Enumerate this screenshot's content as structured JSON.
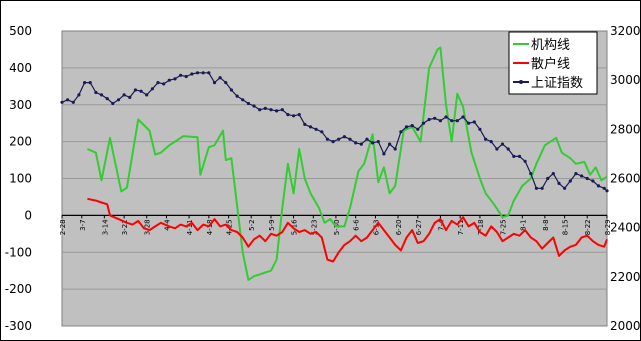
{
  "chart_data": {
    "type": "line",
    "title": "",
    "xlabel": "",
    "ylabel": "",
    "ylim": [
      -300,
      500
    ],
    "y2lim": [
      2000,
      3200
    ],
    "yticks": [
      500,
      400,
      300,
      200,
      100,
      0,
      -100,
      -200,
      -300
    ],
    "y2ticks": [
      3200,
      3000,
      2800,
      2600,
      2400,
      2200,
      2000
    ],
    "x_labels": [
      "2-28",
      "3-7",
      "3-14",
      "3-21",
      "3-28",
      "4-4",
      "4-11",
      "4-18",
      "4-25",
      "5-2",
      "5-9",
      "5-16",
      "5-23",
      "5-30",
      "6-6",
      "6-13",
      "6-20",
      "6-27",
      "7-4",
      "7-11",
      "7-18",
      "7-25",
      "8-1",
      "8-8",
      "8-15",
      "8-22",
      "8-29"
    ],
    "x_count": 128,
    "grid": "horizontal",
    "plot_background": "#c0c0c0",
    "legend_position": "top-right",
    "series": [
      {
        "name": "机构线",
        "axis": "left",
        "color": "#33cc33",
        "values": [
          [
            9,
            180
          ],
          [
            12,
            170
          ],
          [
            14,
            95
          ],
          [
            17,
            210
          ],
          [
            21,
            65
          ],
          [
            23,
            75
          ],
          [
            27,
            260
          ],
          [
            31,
            230
          ],
          [
            33,
            165
          ],
          [
            35,
            170
          ],
          [
            38,
            190
          ],
          [
            41,
            205
          ],
          [
            43,
            215
          ],
          [
            48,
            212
          ],
          [
            49,
            110
          ],
          [
            52,
            185
          ],
          [
            54,
            190
          ],
          [
            57,
            230
          ],
          [
            58,
            150
          ],
          [
            60,
            155
          ],
          [
            64,
            -100
          ],
          [
            66,
            -175
          ],
          [
            68,
            -165
          ],
          [
            70,
            -160
          ],
          [
            72,
            -155
          ],
          [
            74,
            -150
          ],
          [
            76,
            -120
          ],
          [
            78,
            20
          ],
          [
            80,
            140
          ],
          [
            82,
            60
          ],
          [
            84,
            180
          ],
          [
            86,
            100
          ],
          [
            88,
            60
          ],
          [
            91,
            20
          ],
          [
            93,
            -20
          ],
          [
            95,
            -10
          ],
          [
            97,
            -30
          ],
          [
            100,
            -30
          ],
          [
            102,
            20
          ],
          [
            105,
            120
          ],
          [
            107,
            140
          ],
          [
            110,
            220
          ],
          [
            112,
            90
          ],
          [
            114,
            130
          ],
          [
            116,
            60
          ],
          [
            118,
            80
          ],
          [
            121,
            230
          ],
          [
            124,
            240
          ],
          [
            127,
            200
          ],
          [
            130,
            400
          ],
          [
            133,
            450
          ],
          [
            134,
            455
          ],
          [
            136,
            300
          ],
          [
            138,
            200
          ],
          [
            140,
            330
          ],
          [
            142,
            295
          ],
          [
            145,
            170
          ],
          [
            148,
            100
          ],
          [
            150,
            60
          ],
          [
            153,
            30
          ],
          [
            156,
            -5
          ],
          [
            158,
            0
          ],
          [
            160,
            40
          ],
          [
            163,
            80
          ],
          [
            166,
            100
          ],
          [
            168,
            140
          ],
          [
            171,
            190
          ],
          [
            173,
            200
          ],
          [
            175,
            210
          ],
          [
            177,
            170
          ],
          [
            180,
            155
          ],
          [
            182,
            140
          ],
          [
            185,
            145
          ],
          [
            187,
            110
          ],
          [
            189,
            130
          ],
          [
            191,
            95
          ],
          [
            193,
            105
          ]
        ]
      },
      {
        "name": "散户线",
        "axis": "left",
        "color": "#ff0000",
        "values": [
          [
            9,
            45
          ],
          [
            12,
            40
          ],
          [
            14,
            35
          ],
          [
            16,
            30
          ],
          [
            17,
            0
          ],
          [
            20,
            -10
          ],
          [
            23,
            -20
          ],
          [
            25,
            -25
          ],
          [
            27,
            -15
          ],
          [
            29,
            -35
          ],
          [
            31,
            -40
          ],
          [
            33,
            -30
          ],
          [
            35,
            -20
          ],
          [
            38,
            -30
          ],
          [
            40,
            -35
          ],
          [
            42,
            -25
          ],
          [
            44,
            -30
          ],
          [
            46,
            -20
          ],
          [
            48,
            -40
          ],
          [
            50,
            -25
          ],
          [
            52,
            -30
          ],
          [
            54,
            -10
          ],
          [
            56,
            -30
          ],
          [
            58,
            -25
          ],
          [
            60,
            -40
          ],
          [
            62,
            -45
          ],
          [
            64,
            -60
          ],
          [
            66,
            -85
          ],
          [
            68,
            -65
          ],
          [
            70,
            -55
          ],
          [
            72,
            -70
          ],
          [
            74,
            -50
          ],
          [
            76,
            -55
          ],
          [
            78,
            -45
          ],
          [
            80,
            -20
          ],
          [
            82,
            -35
          ],
          [
            84,
            -45
          ],
          [
            86,
            -40
          ],
          [
            88,
            -50
          ],
          [
            90,
            -45
          ],
          [
            92,
            -60
          ],
          [
            94,
            -120
          ],
          [
            96,
            -125
          ],
          [
            98,
            -100
          ],
          [
            100,
            -80
          ],
          [
            102,
            -70
          ],
          [
            104,
            -55
          ],
          [
            106,
            -70
          ],
          [
            108,
            -60
          ],
          [
            110,
            -40
          ],
          [
            112,
            -20
          ],
          [
            114,
            -40
          ],
          [
            116,
            -60
          ],
          [
            118,
            -80
          ],
          [
            120,
            -95
          ],
          [
            122,
            -60
          ],
          [
            124,
            -40
          ],
          [
            126,
            -75
          ],
          [
            128,
            -70
          ],
          [
            130,
            -50
          ],
          [
            132,
            -20
          ],
          [
            134,
            -10
          ],
          [
            136,
            -40
          ],
          [
            138,
            -15
          ],
          [
            140,
            -25
          ],
          [
            142,
            -5
          ],
          [
            144,
            -30
          ],
          [
            146,
            -20
          ],
          [
            148,
            -45
          ],
          [
            150,
            -55
          ],
          [
            152,
            -30
          ],
          [
            154,
            -45
          ],
          [
            156,
            -70
          ],
          [
            158,
            -60
          ],
          [
            160,
            -50
          ],
          [
            162,
            -55
          ],
          [
            164,
            -40
          ],
          [
            166,
            -60
          ],
          [
            168,
            -70
          ],
          [
            170,
            -90
          ],
          [
            172,
            -75
          ],
          [
            174,
            -60
          ],
          [
            176,
            -110
          ],
          [
            178,
            -95
          ],
          [
            180,
            -85
          ],
          [
            182,
            -80
          ],
          [
            184,
            -60
          ],
          [
            186,
            -55
          ],
          [
            188,
            -70
          ],
          [
            190,
            -80
          ],
          [
            192,
            -85
          ],
          [
            193,
            -65
          ]
        ]
      },
      {
        "name": "上证指数",
        "axis": "right",
        "color": "#1a1a55",
        "values": [
          [
            0,
            2910
          ],
          [
            2,
            2920
          ],
          [
            4,
            2910
          ],
          [
            6,
            2940
          ],
          [
            8,
            2990
          ],
          [
            10,
            2990
          ],
          [
            12,
            2950
          ],
          [
            14,
            2940
          ],
          [
            16,
            2925
          ],
          [
            18,
            2905
          ],
          [
            20,
            2920
          ],
          [
            22,
            2940
          ],
          [
            24,
            2930
          ],
          [
            26,
            2960
          ],
          [
            28,
            2955
          ],
          [
            30,
            2940
          ],
          [
            32,
            2965
          ],
          [
            34,
            2990
          ],
          [
            36,
            2985
          ],
          [
            38,
            3000
          ],
          [
            40,
            3005
          ],
          [
            42,
            3020
          ],
          [
            44,
            3015
          ],
          [
            46,
            3025
          ],
          [
            48,
            3030
          ],
          [
            50,
            3030
          ],
          [
            52,
            3030
          ],
          [
            54,
            2990
          ],
          [
            56,
            3010
          ],
          [
            58,
            2990
          ],
          [
            60,
            2960
          ],
          [
            62,
            2935
          ],
          [
            64,
            2920
          ],
          [
            66,
            2905
          ],
          [
            68,
            2895
          ],
          [
            70,
            2880
          ],
          [
            72,
            2885
          ],
          [
            74,
            2880
          ],
          [
            76,
            2875
          ],
          [
            78,
            2880
          ],
          [
            80,
            2860
          ],
          [
            82,
            2855
          ],
          [
            84,
            2860
          ],
          [
            86,
            2820
          ],
          [
            88,
            2810
          ],
          [
            90,
            2800
          ],
          [
            92,
            2790
          ],
          [
            94,
            2760
          ],
          [
            96,
            2750
          ],
          [
            98,
            2760
          ],
          [
            100,
            2770
          ],
          [
            102,
            2760
          ],
          [
            104,
            2745
          ],
          [
            106,
            2740
          ],
          [
            108,
            2760
          ],
          [
            110,
            2745
          ],
          [
            112,
            2750
          ],
          [
            114,
            2700
          ],
          [
            116,
            2740
          ],
          [
            118,
            2720
          ],
          [
            120,
            2790
          ],
          [
            122,
            2810
          ],
          [
            124,
            2815
          ],
          [
            126,
            2800
          ],
          [
            128,
            2825
          ],
          [
            130,
            2840
          ],
          [
            132,
            2845
          ],
          [
            134,
            2835
          ],
          [
            136,
            2850
          ],
          [
            138,
            2835
          ],
          [
            140,
            2835
          ],
          [
            142,
            2850
          ],
          [
            144,
            2825
          ],
          [
            146,
            2830
          ],
          [
            148,
            2800
          ],
          [
            150,
            2760
          ],
          [
            152,
            2750
          ],
          [
            154,
            2720
          ],
          [
            156,
            2740
          ],
          [
            158,
            2720
          ],
          [
            160,
            2690
          ],
          [
            162,
            2690
          ],
          [
            164,
            2670
          ],
          [
            166,
            2620
          ],
          [
            168,
            2560
          ],
          [
            170,
            2560
          ],
          [
            172,
            2600
          ],
          [
            174,
            2620
          ],
          [
            176,
            2580
          ],
          [
            178,
            2560
          ],
          [
            180,
            2590
          ],
          [
            182,
            2620
          ],
          [
            184,
            2610
          ],
          [
            186,
            2600
          ],
          [
            188,
            2590
          ],
          [
            190,
            2570
          ],
          [
            192,
            2560
          ],
          [
            193,
            2550
          ]
        ]
      }
    ]
  }
}
